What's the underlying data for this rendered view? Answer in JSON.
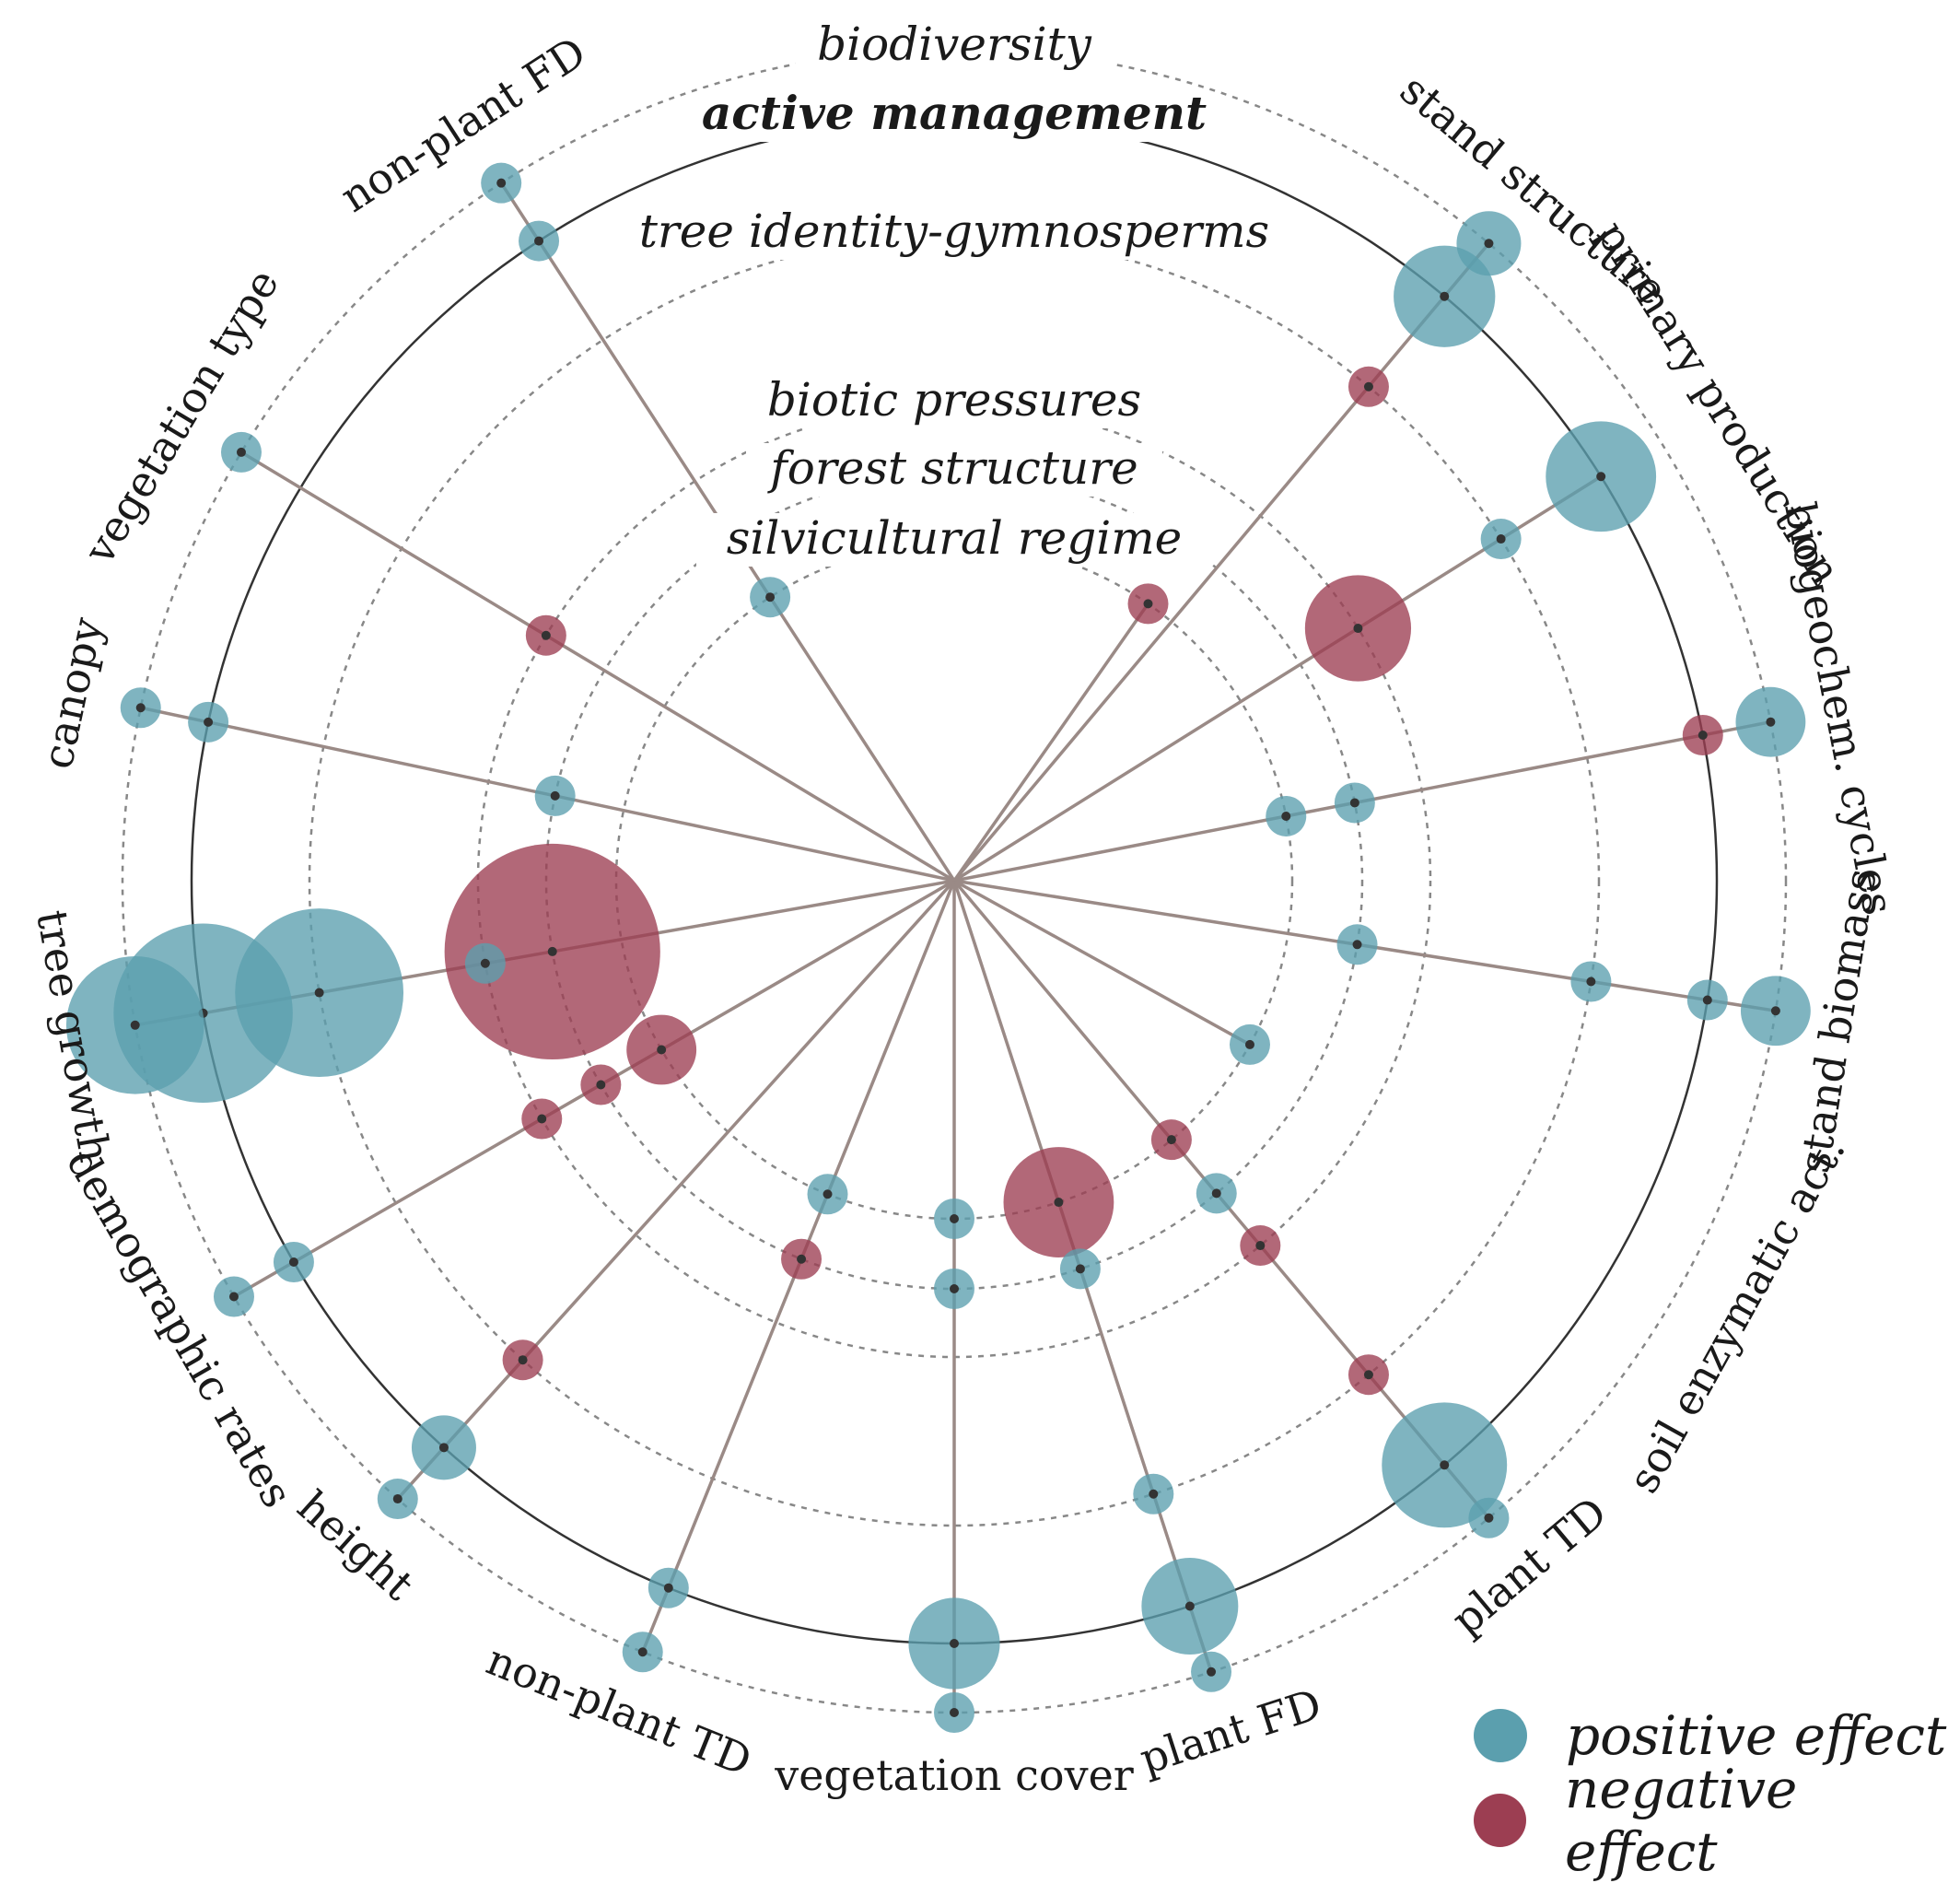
{
  "colors": {
    "positive": "#5b9fae",
    "negative": "#9c3e52",
    "spoke": "#9a8a86",
    "ring_dashed": "#888888",
    "ring_solid": "#333333"
  },
  "legend": {
    "positive_label": "positive effect",
    "negative_label": "negative effect"
  },
  "chart_data": {
    "type": "radial-bubble",
    "title": "",
    "rings": [
      {
        "label": "silvicultural regime",
        "style": "dashed"
      },
      {
        "label": "forest structure",
        "style": "dashed"
      },
      {
        "label": "biotic pressures",
        "style": "dashed"
      },
      {
        "label": "tree identity-gymnosperms",
        "style": "dashed"
      },
      {
        "label": "active management",
        "style": "solid"
      },
      {
        "label": "biodiversity",
        "style": "dashed"
      }
    ],
    "categories": [
      {
        "label": "stand structure",
        "angle": 40,
        "effects": [
          {
            "ring": "tree identity-gymnosperms",
            "sign": "negative",
            "magnitude": 1
          },
          {
            "ring": "active management",
            "sign": "positive",
            "magnitude": 8
          },
          {
            "ring": "biodiversity",
            "sign": "positive",
            "magnitude": 2.5
          }
        ]
      },
      {
        "label": "primary production",
        "angle": 58,
        "effects": [
          {
            "ring": "biotic pressures",
            "sign": "negative",
            "magnitude": 9
          },
          {
            "ring": "tree identity-gymnosperms",
            "sign": "positive",
            "magnitude": 1.5
          },
          {
            "ring": "active management",
            "sign": "positive",
            "magnitude": 10
          }
        ]
      },
      {
        "label": "biogeochem. cycles",
        "angle": 79,
        "effects": [
          {
            "ring": "silvicultural regime",
            "sign": "positive",
            "magnitude": 1
          },
          {
            "ring": "forest structure",
            "sign": "positive",
            "magnitude": 1.5
          },
          {
            "ring": "active management",
            "sign": "negative",
            "magnitude": 1.5
          },
          {
            "ring": "biodiversity",
            "sign": "positive",
            "magnitude": 3
          }
        ]
      },
      {
        "label": "stand biomass",
        "angle": 99,
        "effects": [
          {
            "ring": "forest structure",
            "sign": "positive",
            "magnitude": 1.5
          },
          {
            "ring": "tree identity-gymnosperms",
            "sign": "positive",
            "magnitude": 1.5
          },
          {
            "ring": "active management",
            "sign": "positive",
            "magnitude": 1.5
          },
          {
            "ring": "biodiversity",
            "sign": "positive",
            "magnitude": 3
          }
        ]
      },
      {
        "label": "soil enzymatic act.",
        "angle": 119,
        "effects": [
          {
            "ring": "silvicultural regime",
            "sign": "positive",
            "magnitude": 1.5
          }
        ]
      },
      {
        "label": "plant TD",
        "angle": 140,
        "effects": [
          {
            "ring": "biotic pressures",
            "sign": "negative",
            "magnitude": 1.5
          },
          {
            "ring": "forest structure",
            "sign": "positive",
            "magnitude": 1.5
          },
          {
            "ring": "silvicultural regime",
            "sign": "negative",
            "magnitude": 1.5
          },
          {
            "ring": "tree identity-gymnosperms",
            "sign": "negative",
            "magnitude": 1.5
          },
          {
            "ring": "active management",
            "sign": "positive",
            "magnitude": 14
          },
          {
            "ring": "biodiversity",
            "sign": "positive",
            "magnitude": 1.5
          }
        ]
      },
      {
        "label": "plant FD",
        "angle": 162,
        "effects": [
          {
            "ring": "silvicultural regime",
            "sign": "negative",
            "magnitude": 10
          },
          {
            "ring": "forest structure",
            "sign": "positive",
            "magnitude": 1.5
          },
          {
            "ring": "tree identity-gymnosperms",
            "sign": "positive",
            "magnitude": 1.5
          },
          {
            "ring": "active management",
            "sign": "positive",
            "magnitude": 7
          },
          {
            "ring": "biodiversity",
            "sign": "positive",
            "magnitude": 1.5
          }
        ]
      },
      {
        "label": "vegetation cover",
        "angle": 180,
        "effects": [
          {
            "ring": "silvicultural regime",
            "sign": "positive",
            "magnitude": 1.5
          },
          {
            "ring": "forest structure",
            "sign": "positive",
            "magnitude": 1.5
          },
          {
            "ring": "active management",
            "sign": "positive",
            "magnitude": 6
          },
          {
            "ring": "biodiversity",
            "sign": "positive",
            "magnitude": 1.5
          }
        ]
      },
      {
        "label": "non-plant TD",
        "angle": 202,
        "effects": [
          {
            "ring": "silvicultural regime",
            "sign": "positive",
            "magnitude": 1.5
          },
          {
            "ring": "forest structure",
            "sign": "negative",
            "magnitude": 1.5
          },
          {
            "ring": "active management",
            "sign": "positive",
            "magnitude": 1.5
          },
          {
            "ring": "biodiversity",
            "sign": "positive",
            "magnitude": 1.5
          }
        ]
      },
      {
        "label": "height",
        "angle": 222,
        "effects": [
          {
            "ring": "tree identity-gymnosperms",
            "sign": "negative",
            "magnitude": 1.5
          },
          {
            "ring": "active management",
            "sign": "positive",
            "magnitude": 2.5
          },
          {
            "ring": "biodiversity",
            "sign": "positive",
            "magnitude": 1.5
          }
        ]
      },
      {
        "label": "demographic rates",
        "angle": 240,
        "effects": [
          {
            "ring": "silvicultural regime",
            "sign": "negative",
            "magnitude": 3
          },
          {
            "ring": "forest structure",
            "sign": "negative",
            "magnitude": 1.5
          },
          {
            "ring": "biotic pressures",
            "sign": "negative",
            "magnitude": 1.5
          },
          {
            "ring": "active management",
            "sign": "positive",
            "magnitude": 1.5
          },
          {
            "ring": "biodiversity",
            "sign": "positive",
            "magnitude": 1.5
          }
        ]
      },
      {
        "label": "tree growth",
        "angle": 260,
        "effects": [
          {
            "ring": "forest structure",
            "sign": "negative",
            "magnitude": 55
          },
          {
            "ring": "biotic pressures",
            "sign": "positive",
            "magnitude": 1.5
          },
          {
            "ring": "tree identity-gymnosperms",
            "sign": "positive",
            "magnitude": 30
          },
          {
            "ring": "active management",
            "sign": "positive",
            "magnitude": 35
          },
          {
            "ring": "biodiversity",
            "sign": "positive",
            "magnitude": 18
          }
        ]
      },
      {
        "label": "canopy",
        "angle": 282,
        "effects": [
          {
            "ring": "forest structure",
            "sign": "positive",
            "magnitude": 1.5
          },
          {
            "ring": "active management",
            "sign": "positive",
            "magnitude": 1.5
          },
          {
            "ring": "biodiversity",
            "sign": "positive",
            "magnitude": 1.5
          }
        ]
      },
      {
        "label": "vegetation type",
        "angle": 301,
        "effects": [
          {
            "ring": "biotic pressures",
            "sign": "negative",
            "magnitude": 1.5
          },
          {
            "ring": "biodiversity",
            "sign": "positive",
            "magnitude": 1.5
          }
        ]
      },
      {
        "label": "non-plant FD",
        "angle": 327,
        "effects": [
          {
            "ring": "silvicultural regime",
            "sign": "positive",
            "magnitude": 1.5
          },
          {
            "ring": "active management",
            "sign": "positive",
            "magnitude": 1.5
          },
          {
            "ring": "biodiversity",
            "sign": "positive",
            "magnitude": 1.5
          }
        ]
      },
      {
        "label": "",
        "angle": 35,
        "effects": [
          {
            "ring": "silvicultural regime",
            "sign": "negative",
            "magnitude": 1.5
          }
        ]
      }
    ]
  }
}
